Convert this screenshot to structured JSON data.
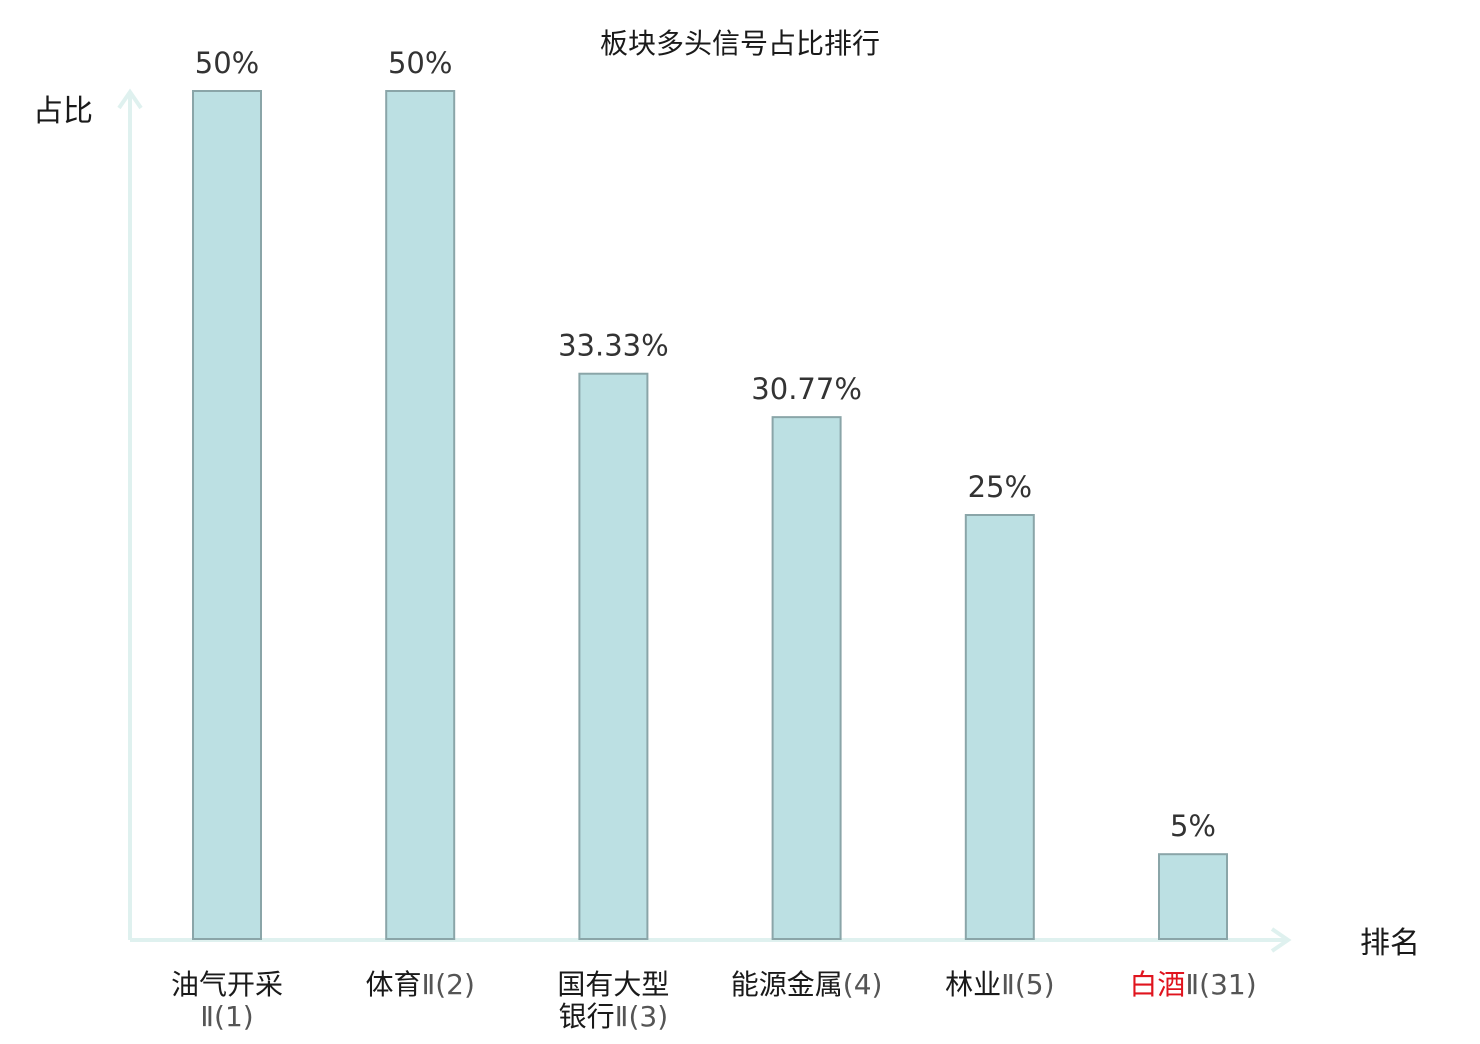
{
  "chart_data": {
    "type": "bar",
    "title": "板块多头信号占比排行",
    "ylabel": "占比",
    "xlabel": "排名",
    "ylim": [
      0,
      50
    ],
    "grid": false,
    "legend": "none",
    "categories": [
      {
        "lines": [
          {
            "main": "油气开采",
            "sub": ""
          },
          {
            "main": "",
            "sub": "Ⅱ(1)"
          }
        ],
        "highlight": false
      },
      {
        "lines": [
          {
            "main": "体育",
            "sub": "Ⅱ(2)"
          }
        ],
        "highlight": false
      },
      {
        "lines": [
          {
            "main": "国有大型",
            "sub": ""
          },
          {
            "main": "银行",
            "sub": "Ⅱ(3)"
          }
        ],
        "highlight": false
      },
      {
        "lines": [
          {
            "main": "能源金属",
            "sub": "(4)"
          }
        ],
        "highlight": false
      },
      {
        "lines": [
          {
            "main": "林业",
            "sub": "Ⅱ(5)"
          }
        ],
        "highlight": false
      },
      {
        "lines": [
          {
            "main": "白酒",
            "sub": "Ⅱ(31)"
          }
        ],
        "highlight": true
      }
    ],
    "values": [
      50,
      50,
      33.33,
      30.77,
      25,
      5
    ],
    "value_labels": [
      "50%",
      "50%",
      "33.33%",
      "30.77%",
      "25%",
      "5%"
    ],
    "colors": {
      "bar_fill": "#bce0e3",
      "bar_stroke": "#8aa5a8",
      "axis": "#dff1ef",
      "highlight_text": "#e0141e"
    }
  }
}
